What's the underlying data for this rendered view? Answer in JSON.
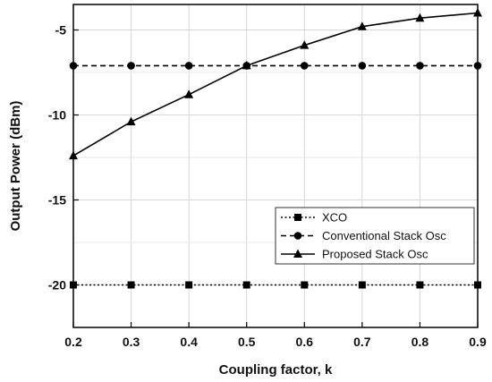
{
  "chart_data": {
    "type": "line",
    "xlabel": "Coupling factor, k",
    "ylabel": "Output Power (dBm)",
    "xlim": [
      0.2,
      0.9
    ],
    "ylim": [
      -22.5,
      -3.5
    ],
    "xticks": [
      "0.2",
      "0.3",
      "0.4",
      "0.5",
      "0.6",
      "0.7",
      "0.8",
      "0.9"
    ],
    "yticks": [
      "-5",
      "-10",
      "-15",
      "-20"
    ],
    "grid": true,
    "legend_position": "lower-right",
    "series": [
      {
        "name": "XCO",
        "line_style": "dotted",
        "marker": "square",
        "x": [
          0.2,
          0.3,
          0.4,
          0.5,
          0.6,
          0.7,
          0.8,
          0.9
        ],
        "y": [
          -20,
          -20,
          -20,
          -20,
          -20,
          -20,
          -20,
          -20
        ]
      },
      {
        "name": "Conventional Stack Osc",
        "line_style": "dashed",
        "marker": "circle",
        "x": [
          0.2,
          0.3,
          0.4,
          0.5,
          0.6,
          0.7,
          0.8,
          0.9
        ],
        "y": [
          -7.1,
          -7.1,
          -7.1,
          -7.1,
          -7.1,
          -7.1,
          -7.1,
          -7.1
        ]
      },
      {
        "name": "Proposed Stack Osc",
        "line_style": "solid",
        "marker": "triangle",
        "x": [
          0.2,
          0.3,
          0.4,
          0.5,
          0.6,
          0.7,
          0.8,
          0.9
        ],
        "y": [
          -12.4,
          -10.4,
          -8.8,
          -7.1,
          -5.9,
          -4.8,
          -4.3,
          -4.0
        ]
      }
    ]
  }
}
